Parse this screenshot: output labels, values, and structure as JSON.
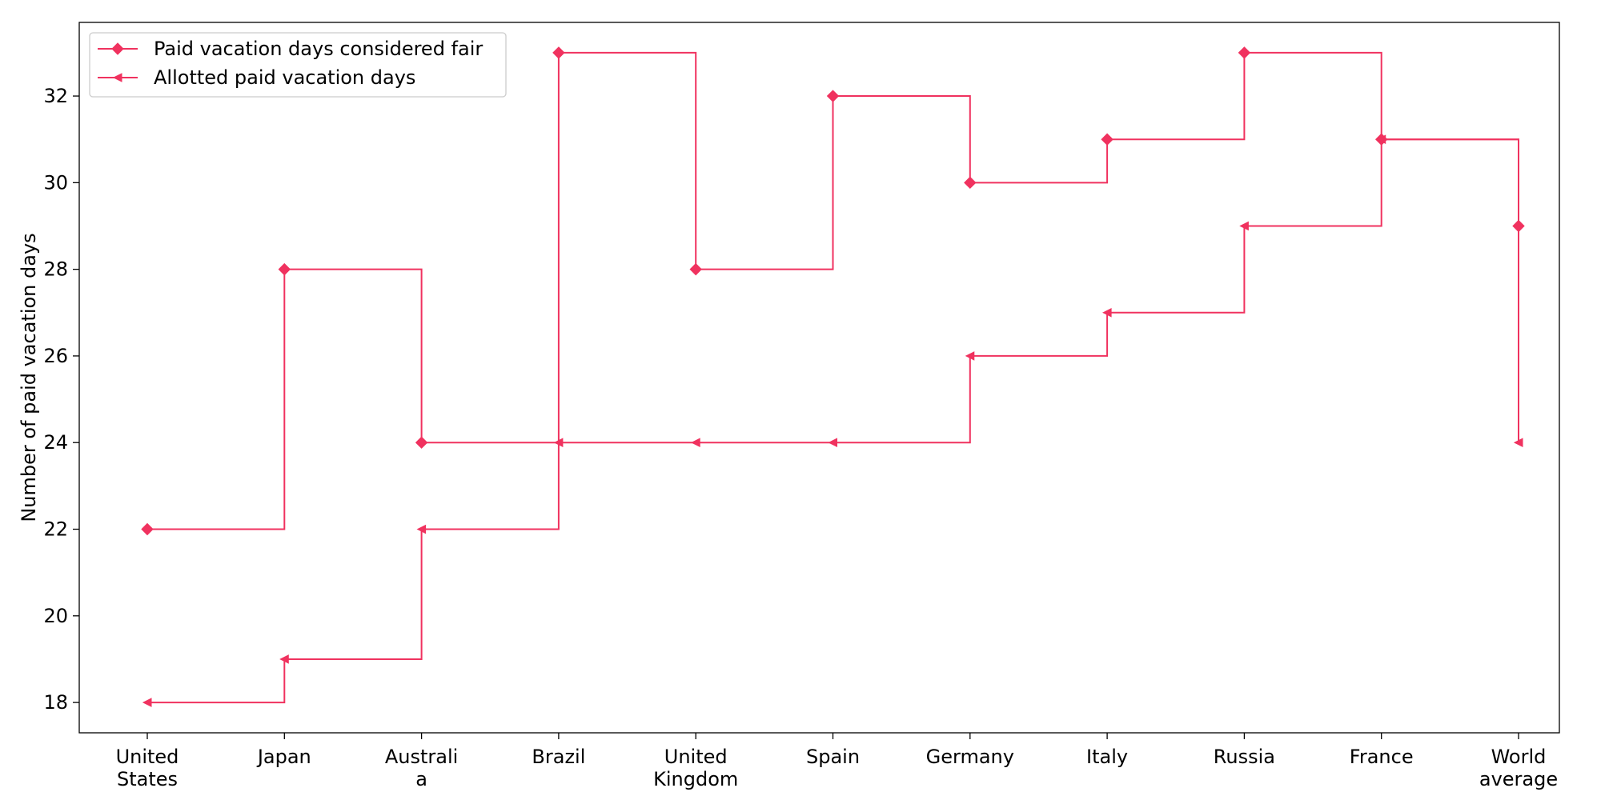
{
  "chart_data": {
    "type": "line",
    "step": "post",
    "categories": [
      [
        "United",
        "States"
      ],
      [
        "Japan"
      ],
      [
        "Australi",
        "a"
      ],
      [
        "Brazil"
      ],
      [
        "United",
        "Kingdom"
      ],
      [
        "Spain"
      ],
      [
        "Germany"
      ],
      [
        "Italy"
      ],
      [
        "Russia"
      ],
      [
        "France"
      ],
      [
        "World",
        "average"
      ]
    ],
    "series": [
      {
        "name": "Paid vacation days considered fair",
        "marker": "diamond",
        "color": "#f0325f",
        "values": [
          22,
          28,
          24,
          33,
          28,
          32,
          30,
          31,
          33,
          31,
          29
        ]
      },
      {
        "name": "Allotted paid vacation days",
        "marker": "triangle-left",
        "color": "#f0325f",
        "values": [
          18,
          19,
          22,
          24,
          24,
          24,
          26,
          27,
          29,
          31,
          24
        ]
      }
    ],
    "ylabel": "Number of paid vacation days",
    "xlabel": "",
    "ylim": [
      17.3,
      33.7
    ],
    "yticks": [
      18,
      20,
      22,
      24,
      26,
      28,
      30,
      32
    ],
    "grid": false,
    "legend_position": "top-left"
  }
}
